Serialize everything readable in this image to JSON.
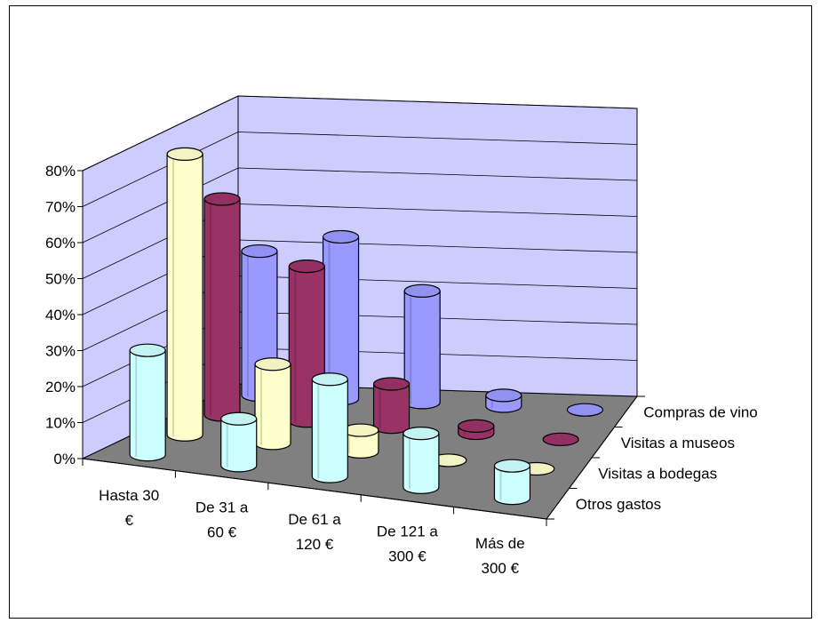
{
  "chart_data": {
    "type": "bar",
    "subtype": "3d-cylinder",
    "title": "",
    "xlabel": "",
    "ylabel": "",
    "ylim": [
      0,
      80
    ],
    "y_ticks": [
      "0%",
      "10%",
      "20%",
      "30%",
      "40%",
      "50%",
      "60%",
      "70%",
      "80%"
    ],
    "categories": [
      "Hasta 30 €",
      "De 31 a 60 €",
      "De 61 a 120 €",
      "De 121 a 300 €",
      "Más de 300 €"
    ],
    "category_lines": [
      [
        "Hasta 30",
        "€"
      ],
      [
        "De 31 a",
        "60 €"
      ],
      [
        "De 61 a",
        "120 €"
      ],
      [
        "De 121 a",
        "300 €"
      ],
      [
        "Más de",
        "300 €"
      ]
    ],
    "series": [
      {
        "name": "Otros gastos",
        "values": [
          29,
          13,
          27,
          15,
          9
        ],
        "color": "#ccffff"
      },
      {
        "name": "Visitas a bodegas",
        "values": [
          78,
          22,
          6,
          0,
          0
        ],
        "color": "#ffffcc"
      },
      {
        "name": "Visitas a museos",
        "values": [
          60,
          43,
          12,
          2,
          0
        ],
        "color": "#993366"
      },
      {
        "name": "Compras de vino",
        "values": [
          40,
          45,
          31,
          3,
          0
        ],
        "color": "#9999ff"
      }
    ],
    "grid": true,
    "legend": "depth-axis"
  }
}
